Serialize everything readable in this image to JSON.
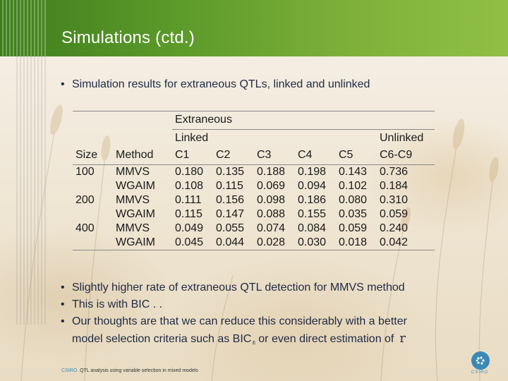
{
  "slide": {
    "title": "Simulations (ctd.)",
    "intro_bullet": "Simulation results for extraneous QTLs, linked and unlinked"
  },
  "table": {
    "group_header": "Extraneous",
    "linked_header": "Linked",
    "unlinked_header": "Unlinked",
    "columns": [
      "Size",
      "Method",
      "C1",
      "C2",
      "C3",
      "C4",
      "C5",
      "C6-C9"
    ],
    "rows": [
      [
        "100",
        "MMVS",
        "0.180",
        "0.135",
        "0.188",
        "0.198",
        "0.143",
        "0.736"
      ],
      [
        "",
        "WGAIM",
        "0.108",
        "0.115",
        "0.069",
        "0.094",
        "0.102",
        "0.184"
      ],
      [
        "200",
        "MMVS",
        "0.111",
        "0.156",
        "0.098",
        "0.186",
        "0.080",
        "0.310"
      ],
      [
        "",
        "WGAIM",
        "0.115",
        "0.147",
        "0.088",
        "0.155",
        "0.035",
        "0.059"
      ],
      [
        "400",
        "MMVS",
        "0.049",
        "0.055",
        "0.074",
        "0.084",
        "0.059",
        "0.240"
      ],
      [
        "",
        "WGAIM",
        "0.045",
        "0.044",
        "0.028",
        "0.030",
        "0.018",
        "0.042"
      ]
    ]
  },
  "bullets": {
    "b1": "Slightly higher rate of extraneous QTL detection for MMVS method",
    "b2": "This is with BIC . .",
    "b3_line1": "Our thoughts are that we can reduce this considerably with a better",
    "b3_line2_a": "model selection criteria such as BIC",
    "b3_sub": "±",
    "b3_line2_b": "or even direct estimation of",
    "b3_symbol": "r",
    "dot": "•"
  },
  "footer": {
    "brand": "CSIRO.",
    "text": "QTL analysis using variable selection in mixed models",
    "logo_text": "CSIRO"
  },
  "colors": {
    "header_green": "#5c9a2a",
    "text_navy": "#1f2a44",
    "csiro_blue": "#3a8ab5"
  }
}
